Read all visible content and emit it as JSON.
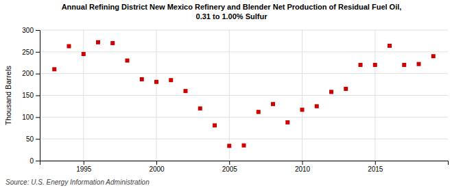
{
  "chart_data": {
    "type": "scatter",
    "title": "Annual Refining District New Mexico Refinery and Blender Net Production of Residual Fuel Oil,\n0.31 to 1.00% Sulfur",
    "ylabel": "Thousand Barrels",
    "source": "Source: U.S. Energy Information Administration",
    "x": [
      1993,
      1994,
      1995,
      1996,
      1997,
      1998,
      1999,
      2000,
      2001,
      2002,
      2003,
      2004,
      2005,
      2006,
      2007,
      2008,
      2009,
      2010,
      2011,
      2012,
      2013,
      2014,
      2015,
      2016,
      2017,
      2018,
      2019
    ],
    "values": [
      210,
      263,
      245,
      272,
      270,
      230,
      187,
      181,
      185,
      160,
      120,
      81,
      34,
      35,
      112,
      130,
      88,
      117,
      125,
      158,
      165,
      220,
      220,
      264,
      220,
      222,
      240
    ],
    "color": "#cc0000",
    "marker": "square",
    "xlim": [
      1992.0,
      2020.0
    ],
    "xticks": [
      1995,
      2000,
      2005,
      2010,
      2015
    ],
    "ylim": [
      0,
      300
    ],
    "yticks": [
      0,
      50,
      100,
      150,
      200,
      250,
      300
    ],
    "grid": true
  }
}
